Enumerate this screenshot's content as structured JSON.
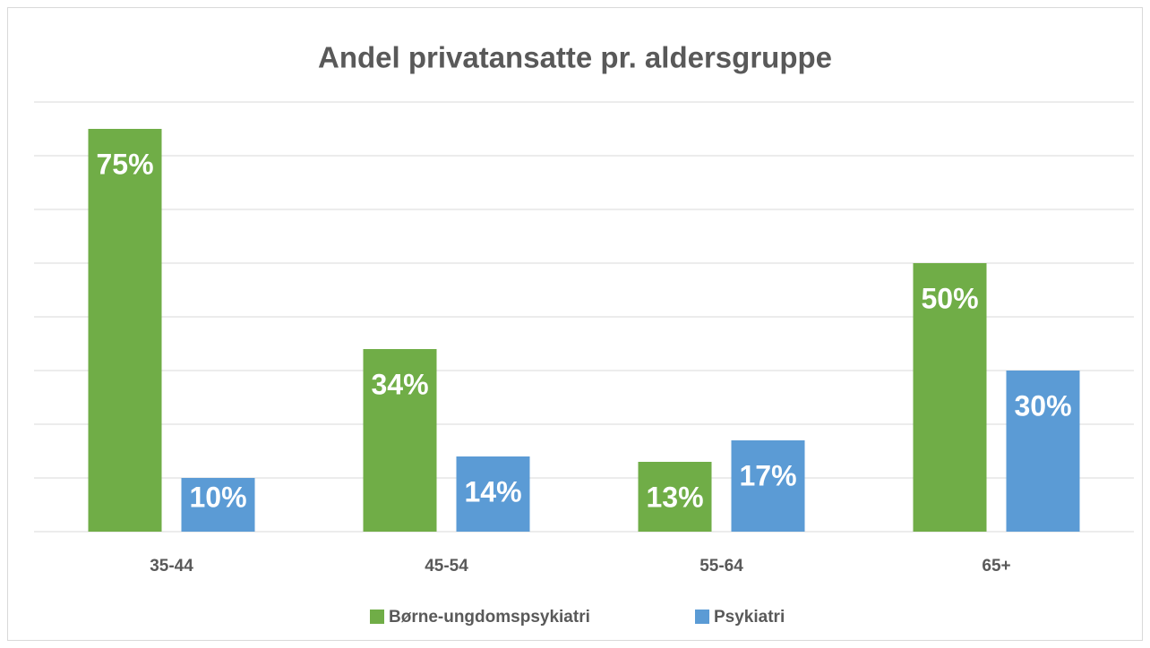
{
  "chart_data": {
    "type": "bar",
    "title": "Andel privatansatte pr. aldersgruppe",
    "categories": [
      "35-44",
      "45-54",
      "55-64",
      "65+"
    ],
    "series": [
      {
        "name": "Børne-ungdomspsykiatri",
        "color": "#70ad47",
        "values": [
          75,
          34,
          13,
          50
        ],
        "value_labels": [
          "75%",
          "34%",
          "13%",
          "50%"
        ]
      },
      {
        "name": "Psykiatri",
        "color": "#5b9bd5",
        "values": [
          10,
          14,
          17,
          30
        ],
        "value_labels": [
          "10%",
          "14%",
          "17%",
          "30%"
        ]
      }
    ],
    "ylim": [
      0,
      80
    ],
    "yticks": [
      0,
      10,
      20,
      30,
      40,
      50,
      60,
      70,
      80
    ],
    "grid": true,
    "legend": "bottom"
  }
}
